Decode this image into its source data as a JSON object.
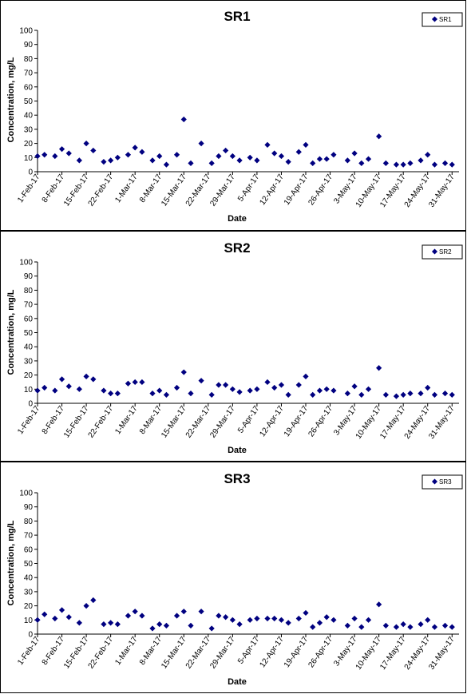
{
  "colors": {
    "marker": "#000080",
    "axis": "#000000",
    "background": "#ffffff"
  },
  "chart_data": [
    {
      "type": "scatter",
      "title": "SR1",
      "xlabel": "Date",
      "ylabel": "Concentration, mg/L",
      "ylim": [
        0,
        100
      ],
      "yticks": [
        "0",
        "10",
        "20",
        "30",
        "40",
        "50",
        "60",
        "70",
        "80",
        "90",
        "100"
      ],
      "xticks": [
        "1-Feb-17",
        "8-Feb-17",
        "15-Feb-17",
        "22-Feb-17",
        "1-Mar-17",
        "8-Mar-17",
        "15-Mar-17",
        "22-Mar-17",
        "29-Mar-17",
        "5-Apr-17",
        "12-Apr-17",
        "19-Apr-17",
        "26-Apr-17",
        "3-May-17",
        "10-May-17",
        "17-May-17",
        "24-May-17",
        "31-May-17"
      ],
      "xlim": [
        "2017-02-01",
        "2017-06-02"
      ],
      "legend": "top-right",
      "grid": false,
      "series": [
        {
          "name": "SR1",
          "points": [
            [
              "2017-02-01",
              11
            ],
            [
              "2017-02-03",
              12
            ],
            [
              "2017-02-06",
              11
            ],
            [
              "2017-02-08",
              16
            ],
            [
              "2017-02-10",
              13
            ],
            [
              "2017-02-13",
              8
            ],
            [
              "2017-02-15",
              20
            ],
            [
              "2017-02-17",
              15
            ],
            [
              "2017-02-20",
              7
            ],
            [
              "2017-02-22",
              8
            ],
            [
              "2017-02-24",
              10
            ],
            [
              "2017-02-27",
              12
            ],
            [
              "2017-03-01",
              17
            ],
            [
              "2017-03-03",
              14
            ],
            [
              "2017-03-06",
              8
            ],
            [
              "2017-03-08",
              11
            ],
            [
              "2017-03-10",
              5
            ],
            [
              "2017-03-13",
              12
            ],
            [
              "2017-03-15",
              37
            ],
            [
              "2017-03-17",
              6
            ],
            [
              "2017-03-20",
              20
            ],
            [
              "2017-03-23",
              6
            ],
            [
              "2017-03-25",
              11
            ],
            [
              "2017-03-27",
              15
            ],
            [
              "2017-03-29",
              11
            ],
            [
              "2017-03-31",
              8
            ],
            [
              "2017-04-03",
              10
            ],
            [
              "2017-04-05",
              8
            ],
            [
              "2017-04-08",
              19
            ],
            [
              "2017-04-10",
              13
            ],
            [
              "2017-04-12",
              11
            ],
            [
              "2017-04-14",
              7
            ],
            [
              "2017-04-17",
              14
            ],
            [
              "2017-04-19",
              19
            ],
            [
              "2017-04-21",
              6
            ],
            [
              "2017-04-23",
              9
            ],
            [
              "2017-04-25",
              9
            ],
            [
              "2017-04-27",
              12
            ],
            [
              "2017-05-01",
              8
            ],
            [
              "2017-05-03",
              13
            ],
            [
              "2017-05-05",
              6
            ],
            [
              "2017-05-07",
              9
            ],
            [
              "2017-05-10",
              25
            ],
            [
              "2017-05-12",
              6
            ],
            [
              "2017-05-15",
              5
            ],
            [
              "2017-05-17",
              5
            ],
            [
              "2017-05-19",
              6
            ],
            [
              "2017-05-22",
              8
            ],
            [
              "2017-05-24",
              12
            ],
            [
              "2017-05-26",
              5
            ],
            [
              "2017-05-29",
              6
            ],
            [
              "2017-05-31",
              5
            ]
          ]
        }
      ]
    },
    {
      "type": "scatter",
      "title": "SR2",
      "xlabel": "Date",
      "ylabel": "Concentration, mg/L",
      "ylim": [
        0,
        100
      ],
      "yticks": [
        "0",
        "10",
        "20",
        "30",
        "40",
        "50",
        "60",
        "70",
        "80",
        "90",
        "100"
      ],
      "xticks": [
        "1-Feb-17",
        "8-Feb-17",
        "15-Feb-17",
        "22-Feb-17",
        "1-Mar-17",
        "8-Mar-17",
        "15-Mar-17",
        "22-Mar-17",
        "29-Mar-17",
        "5-Apr-17",
        "12-Apr-17",
        "19-Apr-17",
        "26-Apr-17",
        "3-May-17",
        "10-May-17",
        "17-May-17",
        "24-May-17",
        "31-May-17"
      ],
      "xlim": [
        "2017-02-01",
        "2017-06-02"
      ],
      "legend": "top-right",
      "grid": false,
      "series": [
        {
          "name": "SR2",
          "points": [
            [
              "2017-02-01",
              9
            ],
            [
              "2017-02-03",
              11
            ],
            [
              "2017-02-06",
              9
            ],
            [
              "2017-02-08",
              17
            ],
            [
              "2017-02-10",
              12
            ],
            [
              "2017-02-13",
              10
            ],
            [
              "2017-02-15",
              19
            ],
            [
              "2017-02-17",
              17
            ],
            [
              "2017-02-20",
              9
            ],
            [
              "2017-02-22",
              7
            ],
            [
              "2017-02-24",
              7
            ],
            [
              "2017-02-27",
              14
            ],
            [
              "2017-03-01",
              15
            ],
            [
              "2017-03-03",
              15
            ],
            [
              "2017-03-06",
              7
            ],
            [
              "2017-03-08",
              9
            ],
            [
              "2017-03-10",
              6
            ],
            [
              "2017-03-13",
              11
            ],
            [
              "2017-03-15",
              22
            ],
            [
              "2017-03-17",
              7
            ],
            [
              "2017-03-20",
              16
            ],
            [
              "2017-03-23",
              6
            ],
            [
              "2017-03-25",
              13
            ],
            [
              "2017-03-27",
              13
            ],
            [
              "2017-03-29",
              10
            ],
            [
              "2017-03-31",
              8
            ],
            [
              "2017-04-03",
              9
            ],
            [
              "2017-04-05",
              10
            ],
            [
              "2017-04-08",
              15
            ],
            [
              "2017-04-10",
              11
            ],
            [
              "2017-04-12",
              13
            ],
            [
              "2017-04-14",
              6
            ],
            [
              "2017-04-17",
              13
            ],
            [
              "2017-04-19",
              19
            ],
            [
              "2017-04-21",
              6
            ],
            [
              "2017-04-23",
              9
            ],
            [
              "2017-04-25",
              10
            ],
            [
              "2017-04-27",
              9
            ],
            [
              "2017-05-01",
              7
            ],
            [
              "2017-05-03",
              12
            ],
            [
              "2017-05-05",
              6
            ],
            [
              "2017-05-07",
              10
            ],
            [
              "2017-05-10",
              25
            ],
            [
              "2017-05-12",
              6
            ],
            [
              "2017-05-15",
              5
            ],
            [
              "2017-05-17",
              6
            ],
            [
              "2017-05-19",
              7
            ],
            [
              "2017-05-22",
              7
            ],
            [
              "2017-05-24",
              11
            ],
            [
              "2017-05-26",
              6
            ],
            [
              "2017-05-29",
              7
            ],
            [
              "2017-05-31",
              6
            ]
          ]
        }
      ]
    },
    {
      "type": "scatter",
      "title": "SR3",
      "xlabel": "Date",
      "ylabel": "Concentration, mg/L",
      "ylim": [
        0,
        100
      ],
      "yticks": [
        "0",
        "10",
        "20",
        "30",
        "40",
        "50",
        "60",
        "70",
        "80",
        "90",
        "100"
      ],
      "xticks": [
        "1-Feb-17",
        "8-Feb-17",
        "15-Feb-17",
        "22-Feb-17",
        "1-Mar-17",
        "8-Mar-17",
        "15-Mar-17",
        "22-Mar-17",
        "29-Mar-17",
        "5-Apr-17",
        "12-Apr-17",
        "19-Apr-17",
        "26-Apr-17",
        "3-May-17",
        "10-May-17",
        "17-May-17",
        "24-May-17",
        "31-May-17"
      ],
      "xlim": [
        "2017-02-01",
        "2017-06-02"
      ],
      "legend": "top-right",
      "grid": false,
      "series": [
        {
          "name": "SR3",
          "points": [
            [
              "2017-02-01",
              10
            ],
            [
              "2017-02-03",
              14
            ],
            [
              "2017-02-06",
              11
            ],
            [
              "2017-02-08",
              17
            ],
            [
              "2017-02-10",
              12
            ],
            [
              "2017-02-13",
              8
            ],
            [
              "2017-02-15",
              20
            ],
            [
              "2017-02-17",
              24
            ],
            [
              "2017-02-20",
              7
            ],
            [
              "2017-02-22",
              8
            ],
            [
              "2017-02-24",
              7
            ],
            [
              "2017-02-27",
              13
            ],
            [
              "2017-03-01",
              16
            ],
            [
              "2017-03-03",
              13
            ],
            [
              "2017-03-06",
              4
            ],
            [
              "2017-03-08",
              7
            ],
            [
              "2017-03-10",
              6
            ],
            [
              "2017-03-13",
              13
            ],
            [
              "2017-03-15",
              16
            ],
            [
              "2017-03-17",
              6
            ],
            [
              "2017-03-20",
              16
            ],
            [
              "2017-03-23",
              4
            ],
            [
              "2017-03-25",
              13
            ],
            [
              "2017-03-27",
              12
            ],
            [
              "2017-03-29",
              10
            ],
            [
              "2017-03-31",
              7
            ],
            [
              "2017-04-03",
              10
            ],
            [
              "2017-04-05",
              11
            ],
            [
              "2017-04-08",
              11
            ],
            [
              "2017-04-10",
              11
            ],
            [
              "2017-04-12",
              10
            ],
            [
              "2017-04-14",
              8
            ],
            [
              "2017-04-17",
              11
            ],
            [
              "2017-04-19",
              15
            ],
            [
              "2017-04-21",
              5
            ],
            [
              "2017-04-23",
              8
            ],
            [
              "2017-04-25",
              12
            ],
            [
              "2017-04-27",
              10
            ],
            [
              "2017-05-01",
              6
            ],
            [
              "2017-05-03",
              11
            ],
            [
              "2017-05-05",
              5
            ],
            [
              "2017-05-07",
              10
            ],
            [
              "2017-05-10",
              21
            ],
            [
              "2017-05-12",
              6
            ],
            [
              "2017-05-15",
              5
            ],
            [
              "2017-05-17",
              7
            ],
            [
              "2017-05-19",
              5
            ],
            [
              "2017-05-22",
              7
            ],
            [
              "2017-05-24",
              10
            ],
            [
              "2017-05-26",
              5
            ],
            [
              "2017-05-29",
              6
            ],
            [
              "2017-05-31",
              5
            ]
          ]
        }
      ]
    }
  ]
}
